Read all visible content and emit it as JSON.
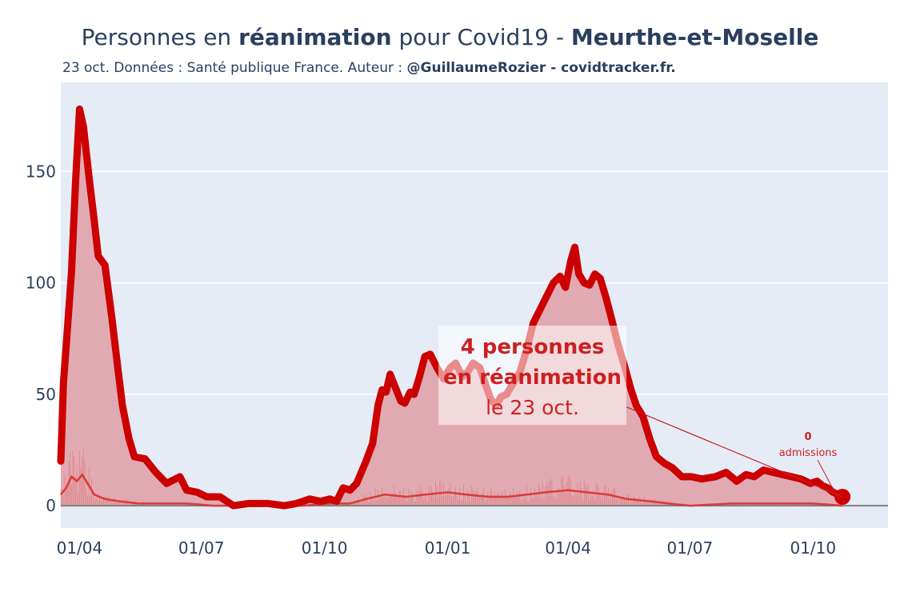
{
  "header": {
    "title_part1": "Personnes en ",
    "title_bold1": "réanimation",
    "title_part2": " pour Covid19 - ",
    "title_bold2": "Meurthe-et-Moselle",
    "subtitle_text": "23 oct. Données : Santé publique France. Auteur : ",
    "subtitle_bold": "@GuillaumeRozier - covidtracker.fr."
  },
  "colors": {
    "line": "#cc0000",
    "fill": "#e0a3ab",
    "admissions": "#d93a3a",
    "plot_bg": "#e5ecf6",
    "grid": "#ffffff",
    "zeroline": "#7f7f7f",
    "annotation": "#cc2020"
  },
  "chart_data": {
    "type": "area",
    "x_axis": {
      "range": [
        "2020-03-18",
        "2021-11-26"
      ],
      "tick_labels": [
        "01/04",
        "01/07",
        "01/10",
        "01/01",
        "01/04",
        "01/07",
        "01/10"
      ],
      "tick_dates": [
        "2020-04-01",
        "2020-07-01",
        "2020-10-01",
        "2021-01-01",
        "2021-04-01",
        "2021-07-01",
        "2021-10-01"
      ]
    },
    "y_axis": {
      "range": [
        -10,
        190
      ],
      "tick_values": [
        0,
        50,
        100,
        150
      ],
      "tick_labels": [
        "0",
        "50",
        "100",
        "150"
      ]
    },
    "grid": true,
    "series": [
      {
        "kind": "reanimation",
        "points": [
          [
            "2020-03-18",
            20
          ],
          [
            "2020-03-20",
            55
          ],
          [
            "2020-03-23",
            80
          ],
          [
            "2020-03-26",
            105
          ],
          [
            "2020-03-29",
            145
          ],
          [
            "2020-04-01",
            178
          ],
          [
            "2020-04-04",
            170
          ],
          [
            "2020-04-08",
            148
          ],
          [
            "2020-04-12",
            128
          ],
          [
            "2020-04-15",
            112
          ],
          [
            "2020-04-20",
            108
          ],
          [
            "2020-04-25",
            85
          ],
          [
            "2020-04-30",
            60
          ],
          [
            "2020-05-03",
            45
          ],
          [
            "2020-05-08",
            30
          ],
          [
            "2020-05-12",
            22
          ],
          [
            "2020-05-20",
            21
          ],
          [
            "2020-05-28",
            15
          ],
          [
            "2020-06-05",
            10
          ],
          [
            "2020-06-15",
            13
          ],
          [
            "2020-06-20",
            7
          ],
          [
            "2020-06-28",
            6
          ],
          [
            "2020-07-05",
            4
          ],
          [
            "2020-07-15",
            4
          ],
          [
            "2020-07-25",
            0
          ],
          [
            "2020-08-05",
            1
          ],
          [
            "2020-08-20",
            1
          ],
          [
            "2020-09-01",
            0
          ],
          [
            "2020-09-10",
            1
          ],
          [
            "2020-09-20",
            3
          ],
          [
            "2020-09-28",
            2
          ],
          [
            "2020-10-05",
            3
          ],
          [
            "2020-10-10",
            2
          ],
          [
            "2020-10-15",
            8
          ],
          [
            "2020-10-20",
            7
          ],
          [
            "2020-10-25",
            10
          ],
          [
            "2020-11-01",
            20
          ],
          [
            "2020-11-06",
            28
          ],
          [
            "2020-11-10",
            45
          ],
          [
            "2020-11-13",
            52
          ],
          [
            "2020-11-16",
            51
          ],
          [
            "2020-11-19",
            59
          ],
          [
            "2020-11-23",
            53
          ],
          [
            "2020-11-27",
            47
          ],
          [
            "2020-11-30",
            46
          ],
          [
            "2020-12-04",
            51
          ],
          [
            "2020-12-07",
            50
          ],
          [
            "2020-12-11",
            58
          ],
          [
            "2020-12-15",
            67
          ],
          [
            "2020-12-19",
            68
          ],
          [
            "2020-12-24",
            62
          ],
          [
            "2020-12-29",
            57
          ],
          [
            "2021-01-03",
            62
          ],
          [
            "2021-01-07",
            64
          ],
          [
            "2021-01-12",
            58
          ],
          [
            "2021-01-16",
            60
          ],
          [
            "2021-01-20",
            64
          ],
          [
            "2021-01-25",
            62
          ],
          [
            "2021-01-29",
            55
          ],
          [
            "2021-02-02",
            48
          ],
          [
            "2021-02-06",
            45
          ],
          [
            "2021-02-10",
            49
          ],
          [
            "2021-02-14",
            50
          ],
          [
            "2021-02-19",
            55
          ],
          [
            "2021-02-24",
            60
          ],
          [
            "2021-03-01",
            70
          ],
          [
            "2021-03-06",
            82
          ],
          [
            "2021-03-11",
            88
          ],
          [
            "2021-03-16",
            94
          ],
          [
            "2021-03-21",
            100
          ],
          [
            "2021-03-26",
            103
          ],
          [
            "2021-03-30",
            98
          ],
          [
            "2021-04-03",
            110
          ],
          [
            "2021-04-06",
            116
          ],
          [
            "2021-04-09",
            104
          ],
          [
            "2021-04-13",
            100
          ],
          [
            "2021-04-17",
            99
          ],
          [
            "2021-04-21",
            104
          ],
          [
            "2021-04-25",
            102
          ],
          [
            "2021-04-29",
            94
          ],
          [
            "2021-05-03",
            85
          ],
          [
            "2021-05-08",
            73
          ],
          [
            "2021-05-13",
            63
          ],
          [
            "2021-05-18",
            52
          ],
          [
            "2021-05-22",
            45
          ],
          [
            "2021-05-27",
            40
          ],
          [
            "2021-06-01",
            30
          ],
          [
            "2021-06-06",
            22
          ],
          [
            "2021-06-12",
            19
          ],
          [
            "2021-06-18",
            17
          ],
          [
            "2021-06-25",
            13
          ],
          [
            "2021-07-02",
            13
          ],
          [
            "2021-07-10",
            12
          ],
          [
            "2021-07-20",
            13
          ],
          [
            "2021-07-28",
            15
          ],
          [
            "2021-08-05",
            11
          ],
          [
            "2021-08-12",
            14
          ],
          [
            "2021-08-18",
            13
          ],
          [
            "2021-08-25",
            16
          ],
          [
            "2021-09-01",
            15
          ],
          [
            "2021-09-08",
            14
          ],
          [
            "2021-09-15",
            13
          ],
          [
            "2021-09-22",
            12
          ],
          [
            "2021-09-29",
            10
          ],
          [
            "2021-10-04",
            11
          ],
          [
            "2021-10-08",
            9
          ],
          [
            "2021-10-12",
            8
          ],
          [
            "2021-10-16",
            6
          ],
          [
            "2021-10-20",
            5
          ],
          [
            "2021-10-23",
            4
          ]
        ]
      },
      {
        "kind": "admissions",
        "points": [
          [
            "2020-03-18",
            5
          ],
          [
            "2020-03-22",
            8
          ],
          [
            "2020-03-26",
            13
          ],
          [
            "2020-03-30",
            11
          ],
          [
            "2020-04-03",
            14
          ],
          [
            "2020-04-07",
            10
          ],
          [
            "2020-04-12",
            5
          ],
          [
            "2020-04-20",
            3
          ],
          [
            "2020-05-01",
            2
          ],
          [
            "2020-05-15",
            1
          ],
          [
            "2020-06-01",
            1
          ],
          [
            "2020-06-20",
            1
          ],
          [
            "2020-07-10",
            0
          ],
          [
            "2020-08-15",
            0
          ],
          [
            "2020-09-15",
            0
          ],
          [
            "2020-10-05",
            1
          ],
          [
            "2020-10-20",
            1
          ],
          [
            "2020-11-01",
            3
          ],
          [
            "2020-11-15",
            5
          ],
          [
            "2020-12-01",
            4
          ],
          [
            "2020-12-15",
            5
          ],
          [
            "2021-01-01",
            6
          ],
          [
            "2021-01-15",
            5
          ],
          [
            "2021-02-01",
            4
          ],
          [
            "2021-02-15",
            4
          ],
          [
            "2021-03-01",
            5
          ],
          [
            "2021-03-15",
            6
          ],
          [
            "2021-04-01",
            7
          ],
          [
            "2021-04-15",
            6
          ],
          [
            "2021-05-01",
            5
          ],
          [
            "2021-05-15",
            3
          ],
          [
            "2021-06-01",
            2
          ],
          [
            "2021-06-15",
            1
          ],
          [
            "2021-07-01",
            0
          ],
          [
            "2021-08-01",
            1
          ],
          [
            "2021-09-01",
            1
          ],
          [
            "2021-10-01",
            1
          ],
          [
            "2021-10-23",
            0
          ]
        ]
      }
    ],
    "last_point": [
      "2021-10-23",
      4
    ],
    "annotation_main": {
      "line1": "4 personnes",
      "line2": "en réanimation",
      "line3": "le 23 oct.",
      "anchor": [
        "2021-10-23",
        4
      ]
    },
    "annotation_admissions": {
      "value": "0",
      "label": "admissions",
      "anchor": [
        "2021-10-20",
        3
      ]
    }
  }
}
